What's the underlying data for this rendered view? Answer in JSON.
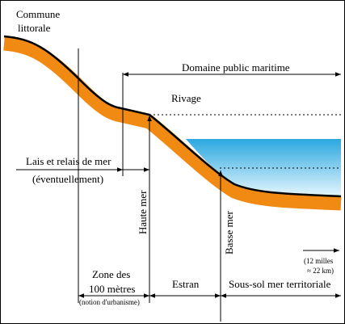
{
  "labels": {
    "commune": [
      "Commune",
      "littorale"
    ],
    "domaine": "Domaine public maritime",
    "rivage": "Rivage",
    "lais": [
      "Lais et relais de mer",
      "(éventuellement)"
    ],
    "haute_mer": "Haute mer",
    "basse_mer": "Basse mer",
    "scale": [
      "(12 milles",
      "≈ 22 km)"
    ],
    "zone": [
      "Zone des",
      "100 mètres",
      "(notion d'urbanisme)"
    ],
    "estran": "Estran",
    "sous_sol": "Sous-sol mer territoriale"
  }
}
